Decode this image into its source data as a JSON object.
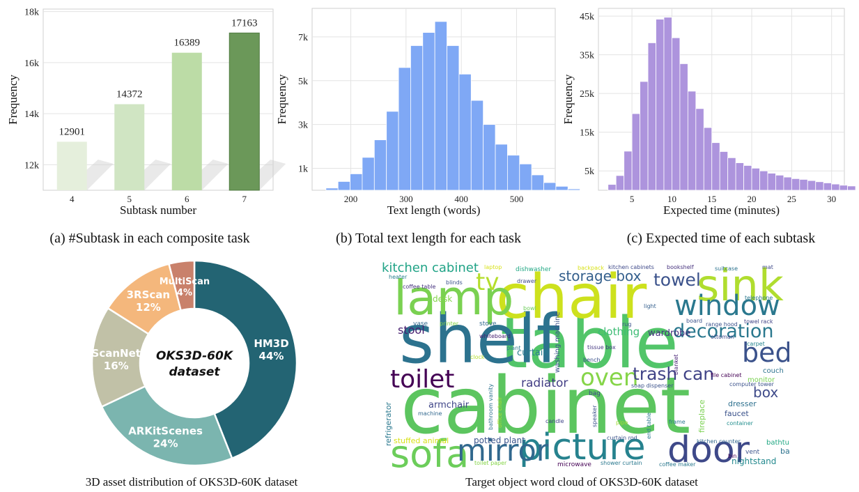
{
  "captions": {
    "a": "(a) #Subtask in each composite task",
    "b": "(b) Total text length for each task",
    "c": "(c) Expected time of each subtask",
    "d": "3D asset distribution of OKS3D-60K dataset",
    "e": "Target object word cloud of OKS3D-60K dataset"
  },
  "chart_data": [
    {
      "type": "bar",
      "xlabel": "Subtask number",
      "ylabel": "Frequency",
      "categories": [
        "4",
        "5",
        "6",
        "7"
      ],
      "values": [
        12901,
        14372,
        16389,
        17163
      ],
      "ylim": [
        11000,
        18100
      ],
      "yticks": [
        12000,
        14000,
        16000,
        18000
      ],
      "ytick_labels": [
        "12k",
        "14k",
        "16k",
        "18k"
      ],
      "colors": [
        "#e5efdc",
        "#d0e5c3",
        "#bcdca6",
        "#6b9859"
      ],
      "grid": true
    },
    {
      "type": "bar",
      "xlabel": "Text length (words)",
      "ylabel": "Frequency",
      "bin_width": 21.9,
      "x_start": 155,
      "values": [
        100,
        400,
        750,
        1500,
        2300,
        3600,
        5600,
        6600,
        7200,
        7700,
        6600,
        5300,
        4100,
        3000,
        2100,
        1600,
        1200,
        700,
        350,
        180,
        60,
        20
      ],
      "xlim": [
        130,
        570
      ],
      "xticks": [
        200,
        300,
        400,
        500
      ],
      "ylim": [
        0,
        8300
      ],
      "yticks": [
        1000,
        3000,
        5000,
        7000
      ],
      "ytick_labels": [
        "1k",
        "3k",
        "5k",
        "7k"
      ],
      "color": "#7fa8f5",
      "grid": true
    },
    {
      "type": "bar",
      "xlabel": "Expected time (minutes)",
      "ylabel": "Frequency",
      "bin_width": 1,
      "x_start": 2,
      "values": [
        1500,
        3800,
        10100,
        19800,
        28100,
        38100,
        44200,
        44700,
        39400,
        32700,
        25600,
        21100,
        16200,
        12300,
        10000,
        8400,
        7100,
        6400,
        5700,
        5000,
        4400,
        3900,
        3400,
        3000,
        2800,
        2500,
        2200,
        1900,
        1600,
        1300,
        1100
      ],
      "xlim": [
        0.8,
        31.6
      ],
      "xticks": [
        5,
        10,
        15,
        20,
        25,
        30
      ],
      "ylim": [
        0,
        47000
      ],
      "yticks": [
        5000,
        15000,
        25000,
        35000,
        45000
      ],
      "ytick_labels": [
        "5k",
        "15k",
        "25k",
        "35k",
        "45k"
      ],
      "color": "#ad94dd",
      "grid": true
    },
    {
      "type": "pie",
      "center_title": [
        "OKS3D-60K",
        "dataset"
      ],
      "slices": [
        {
          "name": "HM3D",
          "value": 44,
          "label": "44%",
          "color": "#236473"
        },
        {
          "name": "ARKitScenes",
          "value": 24,
          "label": "24%",
          "color": "#7bb5af"
        },
        {
          "name": "ScanNet",
          "value": 16,
          "label": "16%",
          "color": "#c1c1a7"
        },
        {
          "name": "3RScan",
          "value": 12,
          "label": "12%",
          "color": "#f4b77c"
        },
        {
          "name": "MultiScan",
          "value": 4,
          "label": "4%",
          "color": "#c9816b"
        }
      ]
    },
    {
      "type": "table",
      "kind": "word cloud",
      "words": [
        {
          "w": "cabinet",
          "s": 1.0,
          "c": "#5cc55f"
        },
        {
          "w": "table",
          "s": 0.9,
          "c": "#52c569"
        },
        {
          "w": "shelf",
          "s": 0.86,
          "c": "#2c728e"
        },
        {
          "w": "chair",
          "s": 0.78,
          "c": "#cde11d"
        },
        {
          "w": "lamp",
          "s": 0.62,
          "c": "#7ad151"
        },
        {
          "w": "sink",
          "s": 0.55,
          "c": "#b0dd2f"
        },
        {
          "w": "sofa",
          "s": 0.48,
          "c": "#6ccd5a"
        },
        {
          "w": "picture",
          "s": 0.46,
          "c": "#26828e"
        },
        {
          "w": "door",
          "s": 0.46,
          "c": "#3e4989"
        },
        {
          "w": "mirror",
          "s": 0.38,
          "c": "#31688e"
        },
        {
          "w": "window",
          "s": 0.36,
          "c": "#2a788e"
        },
        {
          "w": "bed",
          "s": 0.34,
          "c": "#3b528b"
        },
        {
          "w": "toilet",
          "s": 0.32,
          "c": "#440154"
        },
        {
          "w": "tv",
          "s": 0.3,
          "c": "#b5de2b"
        },
        {
          "w": "oven",
          "s": 0.3,
          "c": "#86d549"
        },
        {
          "w": "decoration",
          "s": 0.24,
          "c": "#2a788e"
        },
        {
          "w": "trash can",
          "s": 0.22,
          "c": "#414487"
        },
        {
          "w": "towel",
          "s": 0.22,
          "c": "#3b528b"
        },
        {
          "w": "storage box",
          "s": 0.18,
          "c": "#35608d"
        },
        {
          "w": "kitchen cabinet",
          "s": 0.16,
          "c": "#20a386"
        },
        {
          "w": "box",
          "s": 0.18,
          "c": "#3e4a89"
        },
        {
          "w": "radiator",
          "s": 0.15,
          "c": "#433e85"
        },
        {
          "w": "stool",
          "s": 0.14,
          "c": "#481f70"
        },
        {
          "w": "clothing",
          "s": 0.13,
          "c": "#3dbc74"
        },
        {
          "w": "armchair",
          "s": 0.12,
          "c": "#404688"
        },
        {
          "w": "curtain",
          "s": 0.12,
          "c": "#287c8e"
        },
        {
          "w": "wardrobe",
          "s": 0.12,
          "c": "#46327e"
        },
        {
          "w": "desk",
          "s": 0.11,
          "c": "#84d44b"
        },
        {
          "w": "potted plant",
          "s": 0.11,
          "c": "#3a548c"
        },
        {
          "w": "nightstand",
          "s": 0.11,
          "c": "#23898e"
        },
        {
          "w": "stuffed animal",
          "s": 0.1,
          "c": "#d8e219"
        },
        {
          "w": "dresser",
          "s": 0.1,
          "c": "#2d708e"
        },
        {
          "w": "faucet",
          "s": 0.1,
          "c": "#3b528b"
        },
        {
          "w": "monitor",
          "s": 0.09,
          "c": "#7ad151"
        },
        {
          "w": "couch",
          "s": 0.09,
          "c": "#2c728e"
        },
        {
          "w": "basket",
          "s": 0.1,
          "c": "#2c728e"
        },
        {
          "w": "bathtub",
          "s": 0.09,
          "c": "#22a884"
        },
        {
          "w": "fireplace",
          "s": 0.1,
          "c": "#7ad151"
        },
        {
          "w": "refrigerator",
          "s": 0.1,
          "c": "#2a788e"
        },
        {
          "w": "washing machine",
          "s": 0.09,
          "c": "#3b528b"
        },
        {
          "w": "microwave",
          "s": 0.08,
          "c": "#440154"
        },
        {
          "w": "stove",
          "s": 0.08,
          "c": "#31688e"
        },
        {
          "w": "vase",
          "s": 0.08,
          "c": "#31688e"
        },
        {
          "w": "dishwasher",
          "s": 0.08,
          "c": "#22a884"
        },
        {
          "w": "bag",
          "s": 0.08,
          "c": "#3e4989"
        },
        {
          "w": "vent",
          "s": 0.08,
          "c": "#3b528b"
        },
        {
          "w": "carpet",
          "s": 0.07,
          "c": "#25848e"
        },
        {
          "w": "blinds",
          "s": 0.07,
          "c": "#3b528b"
        },
        {
          "w": "light",
          "s": 0.07,
          "c": "#35608d"
        },
        {
          "w": "mat",
          "s": 0.07,
          "c": "#3e4989"
        },
        {
          "w": "pipe",
          "s": 0.07,
          "c": "#a0da39"
        },
        {
          "w": "frame",
          "s": 0.07,
          "c": "#2a788e"
        },
        {
          "w": "candle",
          "s": 0.07,
          "c": "#404588"
        },
        {
          "w": "plant",
          "s": 0.07,
          "c": "#2a788e"
        },
        {
          "w": "bowl",
          "s": 0.06,
          "c": "#6ccd5a"
        },
        {
          "w": "heater",
          "s": 0.06,
          "c": "#277f8e"
        },
        {
          "w": "backpack",
          "s": 0.06,
          "c": "#d8e219"
        },
        {
          "w": "machine",
          "s": 0.06,
          "c": "#31688e"
        },
        {
          "w": "container",
          "s": 0.06,
          "c": "#218e8d"
        },
        {
          "w": "speaker",
          "s": 0.06,
          "c": "#3b528b"
        },
        {
          "w": "bench",
          "s": 0.06,
          "c": "#3b528b"
        },
        {
          "w": "clock",
          "s": 0.06,
          "c": "#b5de2b"
        },
        {
          "w": "board",
          "s": 0.06,
          "c": "#3b528b"
        },
        {
          "w": "blanket",
          "s": 0.06,
          "c": "#482576"
        },
        {
          "w": "drawer",
          "s": 0.06,
          "c": "#3e4a89"
        },
        {
          "w": "suitcase",
          "s": 0.06,
          "c": "#2c728e"
        },
        {
          "w": "telephone",
          "s": 0.06,
          "c": "#2a788e"
        },
        {
          "w": "bookshelf",
          "s": 0.06,
          "c": "#46327e"
        },
        {
          "w": "printer",
          "s": 0.06,
          "c": "#86d549"
        },
        {
          "w": "whiteboard",
          "s": 0.06,
          "c": "#482173"
        },
        {
          "w": "tissue box",
          "s": 0.06,
          "c": "#453781"
        },
        {
          "w": "kitchen counter",
          "s": 0.06,
          "c": "#31688e"
        },
        {
          "w": "soap dispenser",
          "s": 0.06,
          "c": "#3b528b"
        },
        {
          "w": "file cabinet",
          "s": 0.06,
          "c": "#440154"
        },
        {
          "w": "curtain rod",
          "s": 0.06,
          "c": "#3b528b"
        },
        {
          "w": "shower curtain",
          "s": 0.06,
          "c": "#2a788e"
        },
        {
          "w": "toilet paper",
          "s": 0.06,
          "c": "#86d549"
        },
        {
          "w": "kitchen cabinets",
          "s": 0.05,
          "c": "#3e4989"
        },
        {
          "w": "coffee table",
          "s": 0.05,
          "c": "#46327e"
        },
        {
          "w": "computer tower",
          "s": 0.05,
          "c": "#3b528b"
        },
        {
          "w": "range hood",
          "s": 0.05,
          "c": "#3b528b"
        },
        {
          "w": "towel rack",
          "s": 0.05,
          "c": "#414487"
        },
        {
          "w": "ottoman",
          "s": 0.05,
          "c": "#3e4989"
        },
        {
          "w": "office chair",
          "s": 0.05,
          "c": "#a5db36"
        },
        {
          "w": "bathroom vanity",
          "s": 0.05,
          "c": "#2c728e"
        },
        {
          "w": "laptop",
          "s": 0.05,
          "c": "#d8e219"
        },
        {
          "w": "rug",
          "s": 0.05,
          "c": "#3b528b"
        },
        {
          "w": "bin",
          "s": 0.05,
          "c": "#440154"
        },
        {
          "w": "coffee maker",
          "s": 0.05,
          "c": "#2a788e"
        },
        {
          "w": "end table",
          "s": 0.05,
          "c": "#2a788e"
        }
      ]
    }
  ]
}
